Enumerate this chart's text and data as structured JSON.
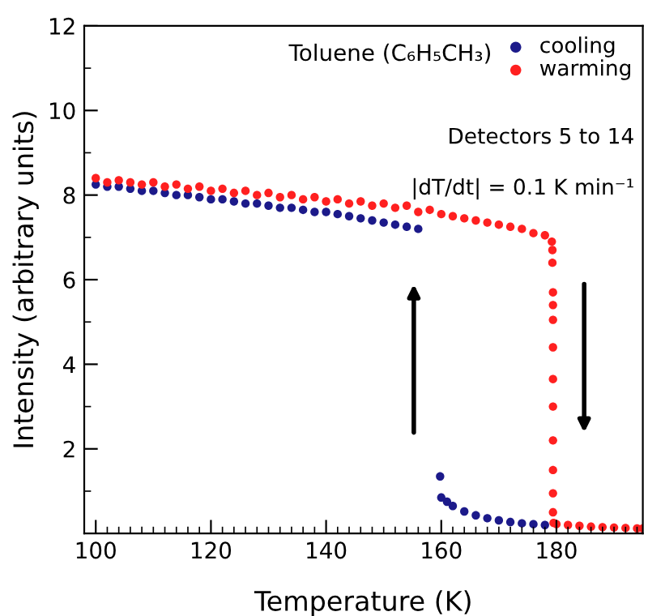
{
  "chart_data": {
    "type": "scatter",
    "title": "Toluene (C₆H₅CH₃)",
    "xlabel": "Temperature (K)",
    "ylabel": "Intensity (arbitrary units)",
    "annotations": [
      "Detectors 5 to 14",
      "|dT/dt| = 0.1 K min⁻¹"
    ],
    "xlim": [
      98,
      195
    ],
    "xticks": [
      100,
      120,
      140,
      160,
      180
    ],
    "ylim": [
      0,
      12
    ],
    "yticks": [
      2,
      4,
      6,
      8,
      10,
      12
    ],
    "grid": false,
    "legend": "top right",
    "marker": "circle",
    "series": [
      {
        "name": "cooling",
        "color": "#1c1a8a",
        "x": [
          100,
          102,
          104,
          106,
          108,
          110,
          112,
          114,
          116,
          118,
          120,
          122,
          124,
          126,
          128,
          130,
          132,
          134,
          136,
          138,
          140,
          142,
          144,
          146,
          148,
          150,
          152,
          154,
          156,
          159.8,
          160,
          161,
          162,
          164,
          166,
          168,
          170,
          172,
          174,
          176,
          178
        ],
        "values": [
          8.25,
          8.2,
          8.2,
          8.15,
          8.1,
          8.1,
          8.05,
          8.0,
          8.0,
          7.95,
          7.9,
          7.9,
          7.85,
          7.8,
          7.8,
          7.75,
          7.7,
          7.7,
          7.65,
          7.6,
          7.6,
          7.55,
          7.5,
          7.45,
          7.4,
          7.35,
          7.3,
          7.25,
          7.2,
          1.35,
          0.85,
          0.75,
          0.65,
          0.52,
          0.43,
          0.36,
          0.31,
          0.27,
          0.24,
          0.22,
          0.2
        ]
      },
      {
        "name": "warming",
        "color": "#ff2020",
        "x": [
          100,
          102,
          104,
          106,
          108,
          110,
          112,
          114,
          116,
          118,
          120,
          122,
          124,
          126,
          128,
          130,
          132,
          134,
          136,
          138,
          140,
          142,
          144,
          146,
          148,
          150,
          152,
          154,
          156,
          158,
          160,
          162,
          164,
          166,
          168,
          170,
          172,
          174,
          176,
          178,
          179.2,
          179.3,
          179.3,
          179.4,
          179.4,
          179.4,
          179.4,
          179.4,
          179.4,
          179.4,
          179.4,
          179.4,
          179.4,
          179.5,
          180,
          182,
          184,
          186,
          188,
          190,
          192,
          194,
          195
        ],
        "values": [
          8.4,
          8.3,
          8.35,
          8.3,
          8.25,
          8.3,
          8.2,
          8.25,
          8.15,
          8.2,
          8.1,
          8.15,
          8.05,
          8.1,
          8.0,
          8.05,
          7.95,
          8.0,
          7.9,
          7.95,
          7.85,
          7.9,
          7.8,
          7.85,
          7.75,
          7.8,
          7.7,
          7.75,
          7.6,
          7.65,
          7.55,
          7.5,
          7.45,
          7.4,
          7.35,
          7.3,
          7.25,
          7.2,
          7.1,
          7.05,
          6.9,
          6.7,
          6.4,
          5.7,
          5.4,
          5.05,
          4.4,
          3.65,
          3.0,
          2.2,
          1.5,
          0.95,
          0.5,
          0.25,
          0.22,
          0.2,
          0.18,
          0.16,
          0.15,
          0.14,
          0.13,
          0.12,
          0.12
        ]
      }
    ]
  }
}
